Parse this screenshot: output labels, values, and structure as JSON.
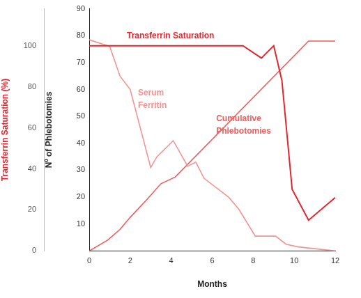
{
  "chart_data": {
    "type": "line",
    "xlabel": "Months",
    "xlim": [
      0,
      12
    ],
    "xticks": [
      0,
      2,
      4,
      6,
      8,
      10,
      12
    ],
    "ylabel": "Nº of Phlebotomies",
    "ylim": [
      0,
      90
    ],
    "yticks": [
      10,
      20,
      30,
      40,
      50,
      60,
      70,
      80,
      90
    ],
    "y2label": "Transferrin Saturation (%)",
    "y2lim": [
      0,
      118
    ],
    "y2ticks": [
      0,
      20,
      40,
      60,
      80,
      100
    ],
    "grid": false,
    "series": [
      {
        "name": "Transferrin Saturation",
        "color": "#e4252d",
        "axis": "y2",
        "x": [
          0,
          7.5,
          8.4,
          9,
          9.4,
          9.9,
          10.7,
          12
        ],
        "values": [
          100,
          100,
          94,
          100,
          83,
          30,
          15,
          26
        ]
      },
      {
        "name": "Serum Ferritin",
        "color": "#f39393",
        "x": [
          0,
          1,
          1.5,
          2,
          3,
          3.3,
          4.1,
          4.8,
          5.2,
          5.6,
          6.8,
          7.3,
          8.1,
          9.1,
          9.6,
          10.2,
          12
        ],
        "values": [
          78.5,
          76,
          65,
          60,
          31,
          35,
          41,
          31.5,
          33,
          27,
          20,
          15.5,
          5.5,
          5.5,
          2.5,
          1.5,
          0
        ]
      },
      {
        "name": "Cumulative Phlebotomies",
        "color": "#f05c5c",
        "x": [
          0,
          0.9,
          1.5,
          2,
          2.8,
          3.5,
          4.2,
          10.7,
          12
        ],
        "values": [
          0,
          4,
          8,
          12.5,
          19,
          25,
          27.5,
          78,
          78
        ]
      }
    ]
  }
}
